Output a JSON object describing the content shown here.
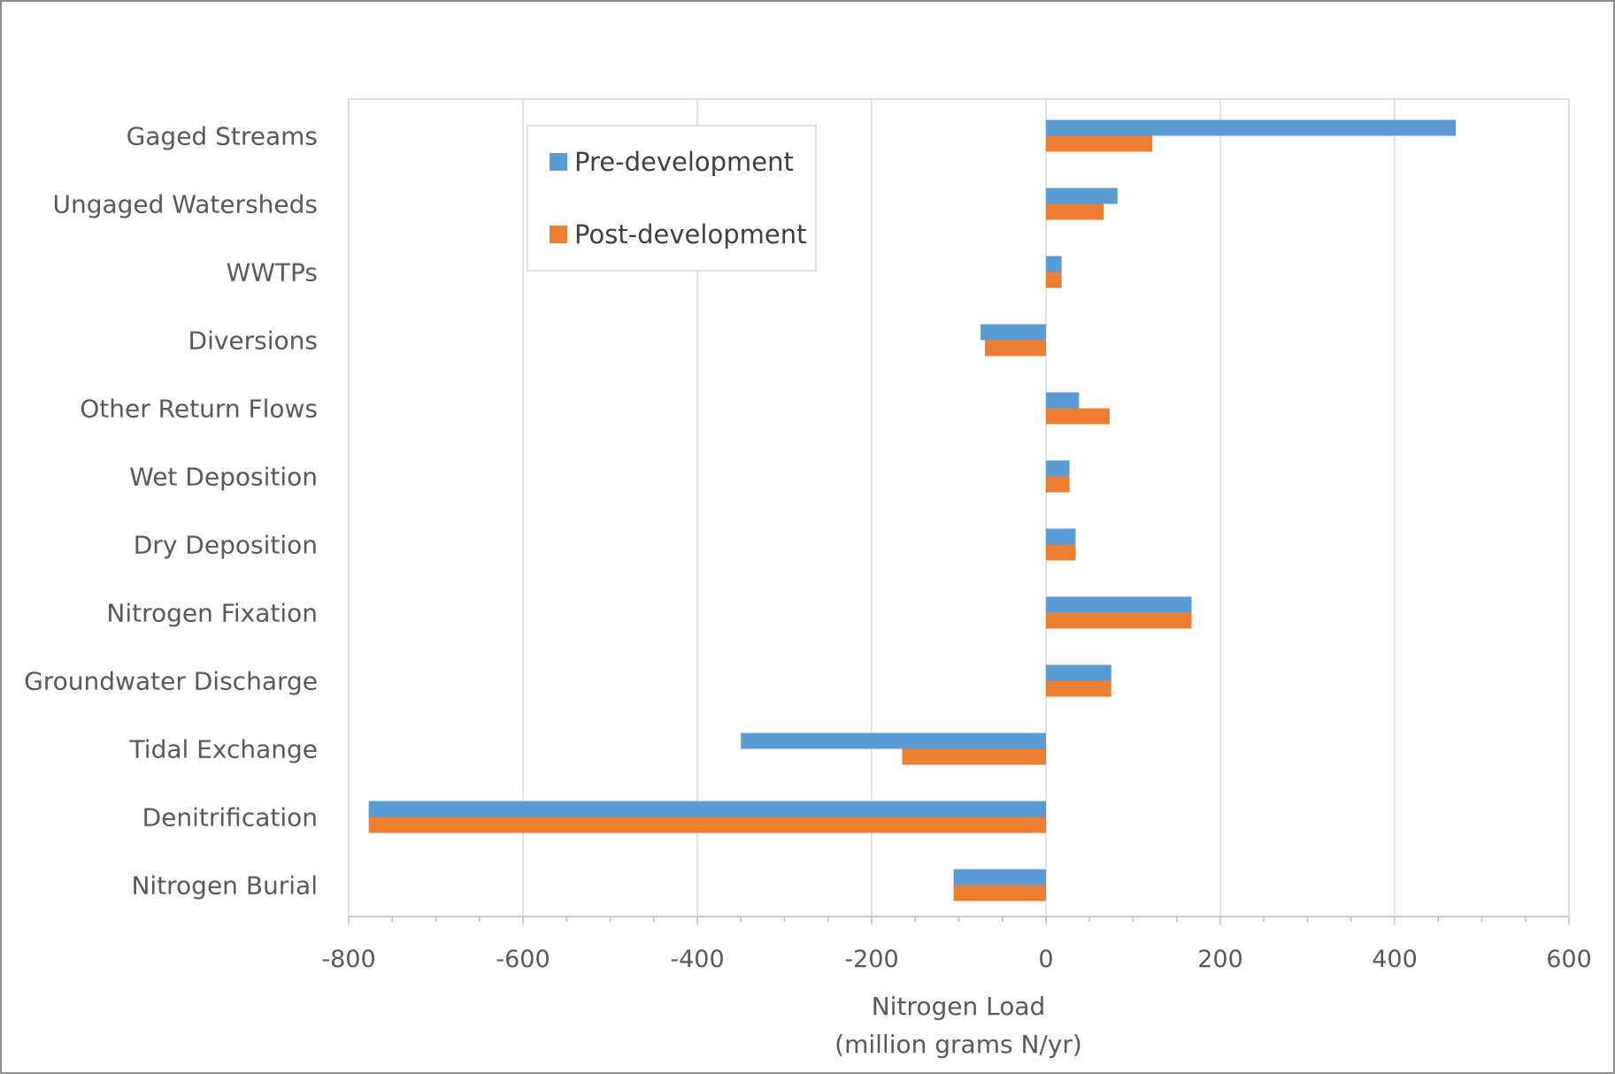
{
  "chart_data": {
    "type": "bar",
    "orientation": "horizontal",
    "categories": [
      "Gaged Streams",
      "Ungaged Watersheds",
      "WWTPs",
      "Diversions",
      "Other Return Flows",
      "Wet Deposition",
      "Dry Deposition",
      "Nitrogen Fixation",
      "Groundwater Discharge",
      "Tidal Exchange",
      "Denitrification",
      "Nitrogen Burial"
    ],
    "series": [
      {
        "name": "Pre-development",
        "color": "#5b9bd5",
        "values": [
          470,
          82,
          18,
          -75,
          38,
          27,
          34,
          167,
          75,
          -350,
          -777,
          -106
        ]
      },
      {
        "name": "Post-development",
        "color": "#ed7d31",
        "values": [
          122,
          66,
          18,
          -70,
          73,
          27,
          34,
          167,
          75,
          -165,
          -777,
          -106
        ]
      }
    ],
    "xlim": [
      -800,
      600
    ],
    "xticks": [
      -800,
      -600,
      -400,
      -200,
      0,
      200,
      400,
      600
    ],
    "xlabel": [
      "Nitrogen Load",
      "(million grams N/yr)"
    ],
    "ylabel": "",
    "title": "",
    "grid": "vertical",
    "legend_position": "top-left inside plot"
  }
}
